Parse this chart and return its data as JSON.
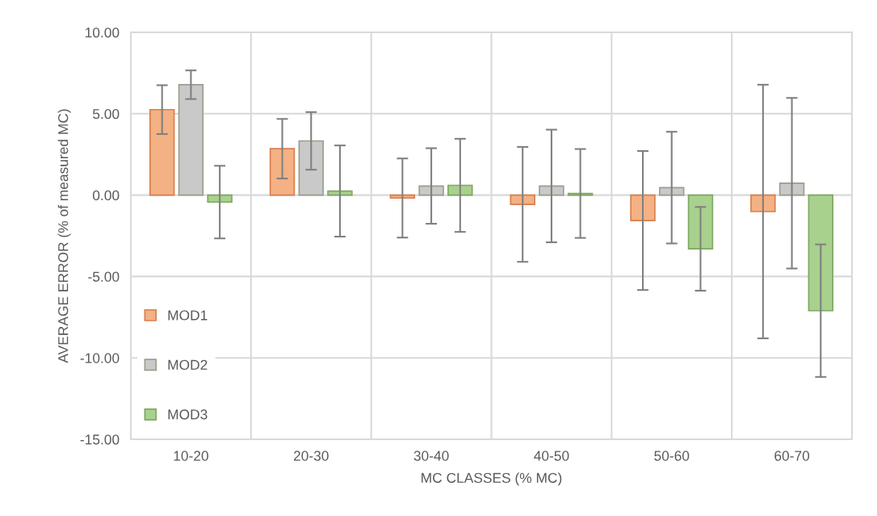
{
  "chart_data": {
    "type": "bar",
    "xlabel": "MC CLASSES (% MC)",
    "ylabel": "AVERAGE ERROR (% of measured MC)",
    "categories": [
      "10-20",
      "20-30",
      "30-40",
      "40-50",
      "50-60",
      "60-70"
    ],
    "series": [
      {
        "name": "MOD1",
        "color": "#f4b183",
        "values": [
          5.25,
          2.85,
          -0.18,
          -0.57,
          -1.56,
          -1.01
        ],
        "errors": [
          1.5,
          1.83,
          2.43,
          3.53,
          4.27,
          7.79
        ]
      },
      {
        "name": "MOD2",
        "color": "#c9c9c9",
        "values": [
          6.78,
          3.33,
          0.56,
          0.56,
          0.46,
          0.73
        ],
        "errors": [
          0.88,
          1.77,
          2.32,
          3.46,
          3.43,
          5.24
        ]
      },
      {
        "name": "MOD3",
        "color": "#a9d18e",
        "values": [
          -0.43,
          0.25,
          0.6,
          0.1,
          -3.3,
          -7.1
        ],
        "errors": [
          2.23,
          2.8,
          2.86,
          2.73,
          2.57,
          4.07
        ]
      }
    ],
    "ylim": [
      -15,
      10
    ],
    "yticks": [
      {
        "value": -15,
        "label": "-15.00"
      },
      {
        "value": -10,
        "label": "-10.00"
      },
      {
        "value": -5,
        "label": "-5.00"
      },
      {
        "value": 0,
        "label": "0.00"
      },
      {
        "value": 5,
        "label": "5.00"
      },
      {
        "value": 10,
        "label": "10.00"
      }
    ],
    "grid": true,
    "legend": "left"
  }
}
